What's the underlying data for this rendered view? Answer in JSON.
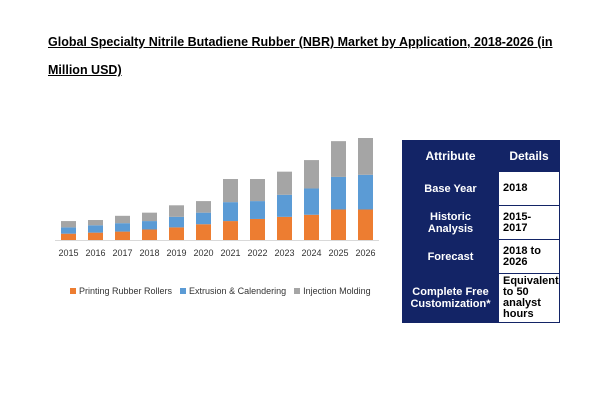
{
  "title": "Global Specialty Nitrile Butadiene Rubber (NBR) Market by Application, 2018-2026 (in Million USD)",
  "colors": {
    "printing": "#ED7D31",
    "extrusion": "#5B9BD5",
    "molding": "#A5A5A5",
    "table_header": "#132466"
  },
  "legend": [
    "Printing Rubber Rollers",
    "Extrusion & Calendering",
    "Injection Molding"
  ],
  "table": {
    "headers": [
      "Attribute",
      "Details"
    ],
    "rows": [
      {
        "attribute": "Base Year",
        "details": "2018"
      },
      {
        "attribute": "Historic Analysis",
        "details": "2015-2017"
      },
      {
        "attribute": "Forecast",
        "details": "2018 to 2026"
      },
      {
        "attribute": "Complete Free Customization*",
        "details": "Equivalent to 50 analyst hours"
      }
    ]
  },
  "chart_data": {
    "type": "bar",
    "stacked": true,
    "title": "Global Specialty Nitrile Butadiene Rubber (NBR) Market by Application, 2018-2026 (in Million USD)",
    "xlabel": "",
    "ylabel": "",
    "categories": [
      "2015",
      "2016",
      "2017",
      "2018",
      "2019",
      "2020",
      "2021",
      "2022",
      "2023",
      "2024",
      "2025",
      "2026"
    ],
    "series": [
      {
        "name": "Printing Rubber Rollers",
        "values": [
          6,
          7,
          8,
          10,
          12,
          15,
          18,
          20,
          22,
          24,
          29,
          29
        ]
      },
      {
        "name": "Extrusion & Calendering",
        "values": [
          6,
          7,
          8,
          8,
          10,
          11,
          18,
          17,
          21,
          25,
          31,
          33
        ]
      },
      {
        "name": "Injection Molding",
        "values": [
          6,
          5,
          7,
          8,
          11,
          11,
          22,
          21,
          22,
          27,
          34,
          35
        ]
      }
    ],
    "grid": false,
    "legend_position": "bottom-left"
  }
}
